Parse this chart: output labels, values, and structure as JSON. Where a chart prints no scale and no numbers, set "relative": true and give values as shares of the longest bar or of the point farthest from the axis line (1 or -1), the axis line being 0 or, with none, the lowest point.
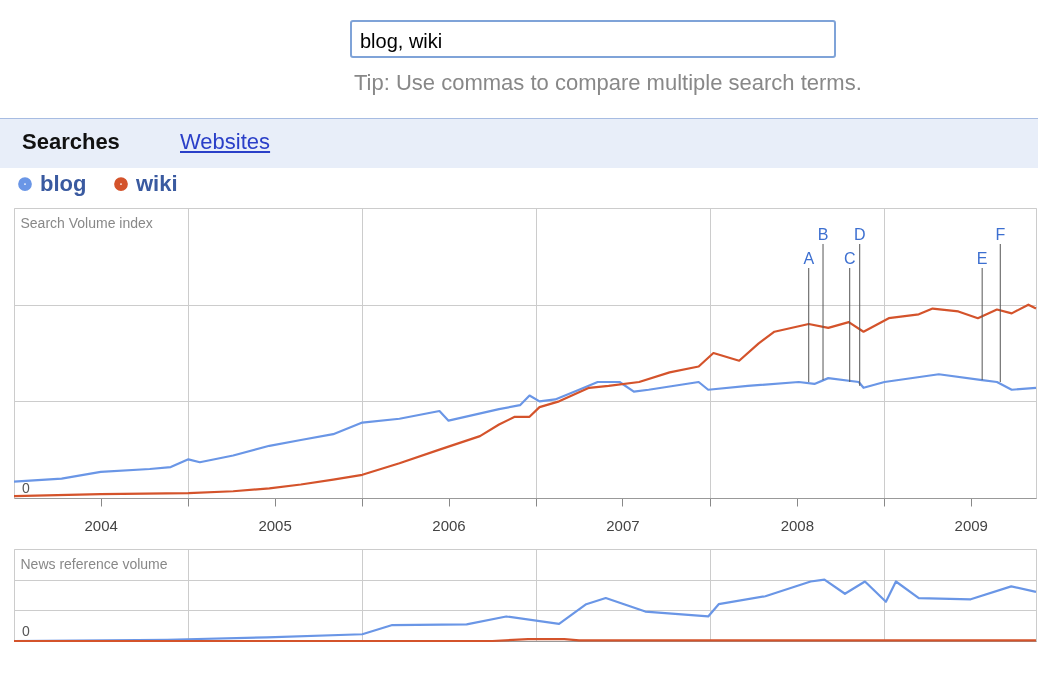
{
  "chart_data": [
    {
      "type": "line",
      "ylabel": "Search Volume index",
      "relative": true,
      "grid": true,
      "legend": "top left",
      "xlim": [
        "2004-01-01",
        "2009-11-15"
      ],
      "xticks": [
        {
          "value": "2004-07-01",
          "label": "2004"
        },
        {
          "value": "2005-01-01",
          "label": null
        },
        {
          "value": "2005-07-01",
          "label": "2005"
        },
        {
          "value": "2006-01-01",
          "label": null
        },
        {
          "value": "2006-07-01",
          "label": "2006"
        },
        {
          "value": "2007-01-01",
          "label": null
        },
        {
          "value": "2007-07-01",
          "label": "2007"
        },
        {
          "value": "2008-01-01",
          "label": null
        },
        {
          "value": "2008-07-01",
          "label": "2008"
        },
        {
          "value": "2009-01-01",
          "label": null
        },
        {
          "value": "2009-07-01",
          "label": "2009"
        }
      ],
      "series": [
        {
          "name": "blog",
          "color": "#6a96e6",
          "x": [
            "2004-01-01",
            "2004-04-10",
            "2004-07-01",
            "2004-10-12",
            "2004-11-25",
            "2005-01-01",
            "2005-01-25",
            "2005-04-05",
            "2005-06-20",
            "2005-08-25",
            "2005-11-01",
            "2006-01-01",
            "2006-03-20",
            "2006-06-12",
            "2006-07-01",
            "2006-10-15",
            "2006-11-28",
            "2006-12-18",
            "2007-01-08",
            "2007-02-10",
            "2007-04-01",
            "2007-05-10",
            "2007-06-25",
            "2007-07-25",
            "2007-08-25",
            "2007-12-08",
            "2007-12-28",
            "2008-03-20",
            "2008-07-05",
            "2008-08-07",
            "2008-09-05",
            "2008-11-08",
            "2008-11-18",
            "2009-01-01",
            "2009-04-25",
            "2009-07-25",
            "2009-08-25",
            "2009-09-25",
            "2009-11-15"
          ],
          "values": [
            0.085,
            0.1,
            0.135,
            0.15,
            0.16,
            0.2,
            0.185,
            0.22,
            0.27,
            0.3,
            0.33,
            0.39,
            0.41,
            0.45,
            0.4,
            0.46,
            0.48,
            0.53,
            0.5,
            0.51,
            0.56,
            0.6,
            0.6,
            0.55,
            0.56,
            0.6,
            0.56,
            0.58,
            0.6,
            0.59,
            0.62,
            0.6,
            0.57,
            0.6,
            0.64,
            0.61,
            0.6,
            0.56,
            0.57
          ]
        },
        {
          "name": "wiki",
          "color": "#d4532b",
          "x": [
            "2004-01-01",
            "2004-07-01",
            "2005-01-01",
            "2005-04-05",
            "2005-06-20",
            "2005-08-25",
            "2005-11-01",
            "2006-01-01",
            "2006-03-20",
            "2006-06-12",
            "2006-09-05",
            "2006-10-15",
            "2006-11-17",
            "2006-12-18",
            "2007-01-08",
            "2007-02-18",
            "2007-04-22",
            "2007-06-02",
            "2007-08-05",
            "2007-10-08",
            "2007-12-08",
            "2008-01-08",
            "2008-03-02",
            "2008-04-12",
            "2008-05-15",
            "2008-07-26",
            "2008-09-05",
            "2008-10-18",
            "2008-11-18",
            "2009-01-10",
            "2009-03-14",
            "2009-04-12",
            "2009-06-05",
            "2009-07-16",
            "2009-08-25",
            "2009-09-25",
            "2009-10-30",
            "2009-11-15"
          ],
          "values": [
            0.01,
            0.02,
            0.025,
            0.035,
            0.05,
            0.07,
            0.095,
            0.12,
            0.18,
            0.25,
            0.32,
            0.38,
            0.42,
            0.42,
            0.47,
            0.5,
            0.57,
            0.58,
            0.6,
            0.65,
            0.68,
            0.75,
            0.71,
            0.8,
            0.86,
            0.9,
            0.88,
            0.91,
            0.86,
            0.93,
            0.95,
            0.98,
            0.965,
            0.93,
            0.975,
            0.955,
            1,
            0.98
          ]
        }
      ],
      "annotations": [
        "blog, wiki",
        "Tip: Use commas to compare multiple search terms.",
        "Searches",
        "Websites",
        {
          "text": "A",
          "x": "2008-07-26",
          "y": 0.6
        },
        {
          "text": "B",
          "x": "2008-08-25",
          "y": 0.61
        },
        {
          "text": "C",
          "x": "2008-10-20",
          "y": 0.6
        },
        {
          "text": "D",
          "x": "2008-11-10",
          "y": 0.58
        },
        {
          "text": "E",
          "x": "2009-07-25",
          "y": 0.61
        },
        {
          "text": "F",
          "x": "2009-09-01",
          "y": 0.6
        },
        "0"
      ]
    },
    {
      "type": "line",
      "ylabel": "News reference volume",
      "relative": true,
      "grid": true,
      "tick_labels": false,
      "xlim": [
        "2004-01-01",
        "2009-11-15"
      ],
      "xticks": [
        {
          "value": "2005-01-01",
          "label": null
        },
        {
          "value": "2006-01-01",
          "label": null
        },
        {
          "value": "2007-01-01",
          "label": null
        },
        {
          "value": "2008-01-01",
          "label": null
        },
        {
          "value": "2009-01-01",
          "label": null
        }
      ],
      "series": [
        {
          "color": "#6a96e6",
          "x": [
            "2004-01-01",
            "2004-07-15",
            "2004-11-18",
            "2005-06-15",
            "2006-01-01",
            "2006-03-05",
            "2006-08-08",
            "2006-10-30",
            "2007-02-18",
            "2007-04-16",
            "2007-05-27",
            "2007-08-18",
            "2007-12-28",
            "2008-01-19",
            "2008-04-26",
            "2008-07-30",
            "2008-08-28",
            "2008-10-10",
            "2008-11-21",
            "2009-01-04",
            "2009-01-25",
            "2009-03-14",
            "2009-07-01",
            "2009-09-24",
            "2009-11-15"
          ],
          "values": [
            0,
            0.01,
            0.02,
            0.06,
            0.11,
            0.26,
            0.27,
            0.4,
            0.28,
            0.6,
            0.7,
            0.48,
            0.4,
            0.6,
            0.73,
            0.97,
            1,
            0.77,
            0.97,
            0.64,
            0.97,
            0.7,
            0.68,
            0.89,
            0.8
          ]
        },
        {
          "color": "#d4532b",
          "x": [
            "2004-01-01",
            "2006-10-01",
            "2006-12-15",
            "2007-03-01",
            "2007-04-01",
            "2009-11-15"
          ],
          "values": [
            0,
            0,
            0.03,
            0.03,
            0.01,
            0.01
          ]
        }
      ],
      "annotations": [
        "0"
      ]
    }
  ]
}
